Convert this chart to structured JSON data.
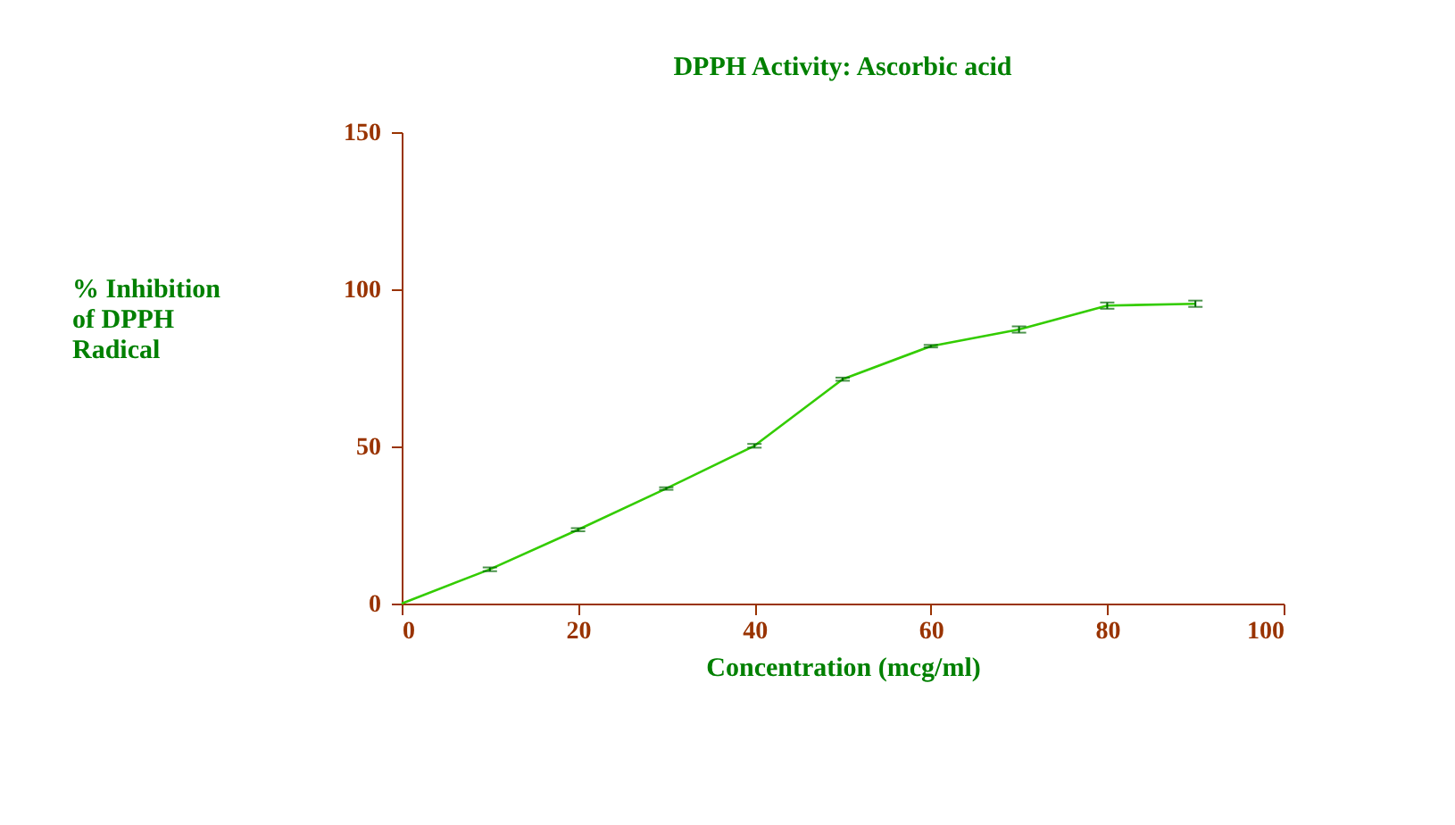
{
  "chart_data": {
    "type": "line",
    "title": "DPPH Activity: Ascorbic acid",
    "xlabel": "Concentration (mcg/ml)",
    "ylabel": "% Inhibition of DPPH Radical",
    "x": [
      0,
      10,
      20,
      30,
      40,
      50,
      60,
      70,
      80,
      90
    ],
    "series": [
      {
        "color": "#33cc00",
        "values": [
          0,
          10.9,
          23.5,
          36.6,
          50.2,
          71.4,
          81.9,
          87.2,
          94.8,
          95.4
        ],
        "errors": [
          null,
          0.6,
          0.5,
          0.4,
          0.6,
          0.5,
          0.4,
          1,
          1,
          1
        ]
      }
    ],
    "xlim": [
      0,
      100
    ],
    "xticks": [
      0,
      20,
      40,
      60,
      80,
      100
    ],
    "ylim": [
      0,
      150
    ],
    "yticks": [
      0,
      50,
      100,
      150
    ],
    "grid": false
  }
}
